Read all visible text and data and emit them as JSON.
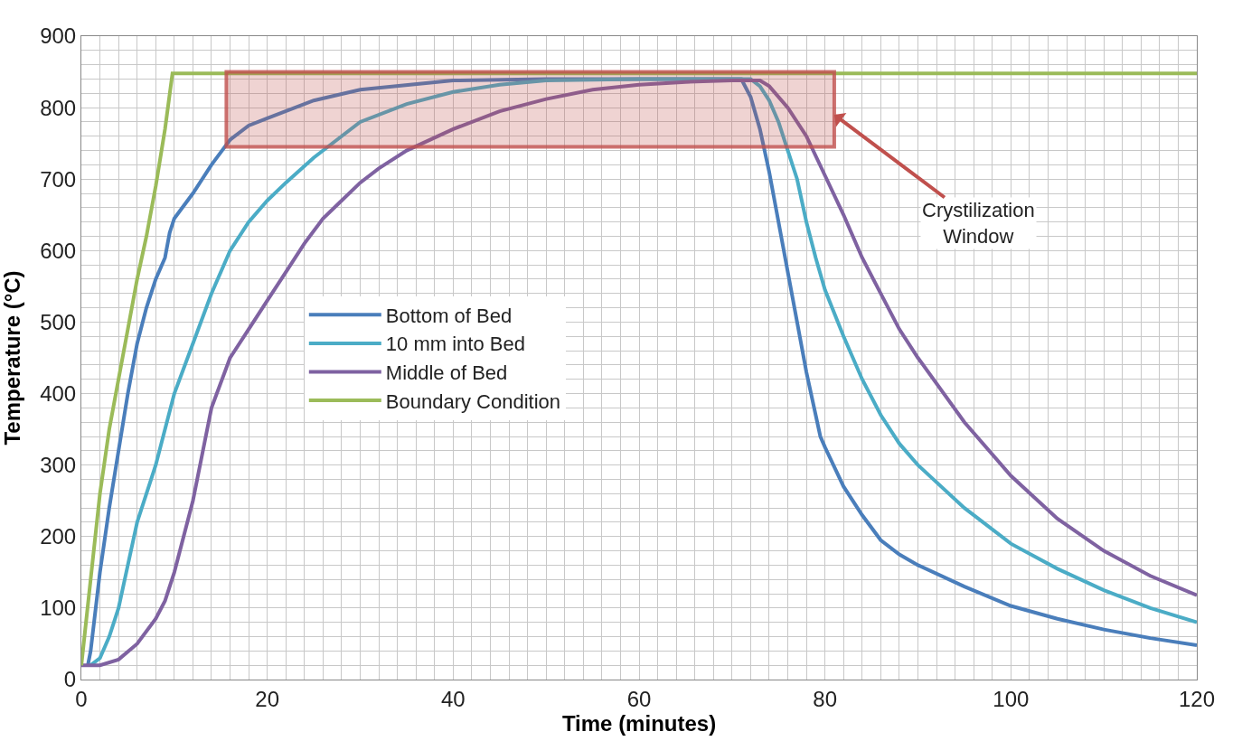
{
  "chart_data": {
    "type": "line",
    "xlabel": "Time (minutes)",
    "ylabel": "Temperature (°C)",
    "xlim": [
      0,
      120
    ],
    "ylim": [
      0,
      900
    ],
    "xticks": [
      0,
      {
        "value": 2,
        "label": null
      },
      {
        "value": 4,
        "label": null
      },
      {
        "value": 6,
        "label": null
      },
      {
        "value": 8,
        "label": null
      },
      {
        "value": 10,
        "label": null
      },
      {
        "value": 12,
        "label": null
      },
      {
        "value": 14,
        "label": null
      },
      {
        "value": 16,
        "label": null
      },
      {
        "value": 18,
        "label": null
      },
      20,
      {
        "value": 22,
        "label": null
      },
      {
        "value": 24,
        "label": null
      },
      {
        "value": 26,
        "label": null
      },
      {
        "value": 28,
        "label": null
      },
      {
        "value": 30,
        "label": null
      },
      {
        "value": 32,
        "label": null
      },
      {
        "value": 34,
        "label": null
      },
      {
        "value": 36,
        "label": null
      },
      {
        "value": 38,
        "label": null
      },
      40,
      {
        "value": 42,
        "label": null
      },
      {
        "value": 44,
        "label": null
      },
      {
        "value": 46,
        "label": null
      },
      {
        "value": 48,
        "label": null
      },
      {
        "value": 50,
        "label": null
      },
      {
        "value": 52,
        "label": null
      },
      {
        "value": 54,
        "label": null
      },
      {
        "value": 56,
        "label": null
      },
      {
        "value": 58,
        "label": null
      },
      60,
      {
        "value": 62,
        "label": null
      },
      {
        "value": 64,
        "label": null
      },
      {
        "value": 66,
        "label": null
      },
      {
        "value": 68,
        "label": null
      },
      {
        "value": 70,
        "label": null
      },
      {
        "value": 72,
        "label": null
      },
      {
        "value": 74,
        "label": null
      },
      {
        "value": 76,
        "label": null
      },
      {
        "value": 78,
        "label": null
      },
      80,
      {
        "value": 82,
        "label": null
      },
      {
        "value": 84,
        "label": null
      },
      {
        "value": 86,
        "label": null
      },
      {
        "value": 88,
        "label": null
      },
      {
        "value": 90,
        "label": null
      },
      {
        "value": 92,
        "label": null
      },
      {
        "value": 94,
        "label": null
      },
      {
        "value": 96,
        "label": null
      },
      {
        "value": 98,
        "label": null
      },
      100,
      {
        "value": 102,
        "label": null
      },
      {
        "value": 104,
        "label": null
      },
      {
        "value": 106,
        "label": null
      },
      {
        "value": 108,
        "label": null
      },
      {
        "value": 110,
        "label": null
      },
      {
        "value": 112,
        "label": null
      },
      {
        "value": 114,
        "label": null
      },
      {
        "value": 116,
        "label": null
      },
      {
        "value": 118,
        "label": null
      },
      120
    ],
    "yticks": [
      0,
      {
        "value": 20,
        "label": null
      },
      {
        "value": 40,
        "label": null
      },
      {
        "value": 60,
        "label": null
      },
      {
        "value": 80,
        "label": null
      },
      100,
      {
        "value": 120,
        "label": null
      },
      {
        "value": 140,
        "label": null
      },
      {
        "value": 160,
        "label": null
      },
      {
        "value": 180,
        "label": null
      },
      200,
      {
        "value": 220,
        "label": null
      },
      {
        "value": 240,
        "label": null
      },
      {
        "value": 260,
        "label": null
      },
      {
        "value": 280,
        "label": null
      },
      300,
      {
        "value": 320,
        "label": null
      },
      {
        "value": 340,
        "label": null
      },
      {
        "value": 360,
        "label": null
      },
      {
        "value": 380,
        "label": null
      },
      400,
      {
        "value": 420,
        "label": null
      },
      {
        "value": 440,
        "label": null
      },
      {
        "value": 460,
        "label": null
      },
      {
        "value": 480,
        "label": null
      },
      500,
      {
        "value": 520,
        "label": null
      },
      {
        "value": 540,
        "label": null
      },
      {
        "value": 560,
        "label": null
      },
      {
        "value": 580,
        "label": null
      },
      600,
      {
        "value": 620,
        "label": null
      },
      {
        "value": 640,
        "label": null
      },
      {
        "value": 660,
        "label": null
      },
      {
        "value": 680,
        "label": null
      },
      700,
      {
        "value": 720,
        "label": null
      },
      {
        "value": 740,
        "label": null
      },
      {
        "value": 760,
        "label": null
      },
      {
        "value": 780,
        "label": null
      },
      800,
      {
        "value": 820,
        "label": null
      },
      {
        "value": 840,
        "label": null
      },
      {
        "value": 860,
        "label": null
      },
      {
        "value": 880,
        "label": null
      },
      900
    ],
    "grid": true,
    "legend": "left",
    "marker": "none",
    "line_style": "solid",
    "series": [
      {
        "name": "Bottom of Bed",
        "color": "#4a7ebb",
        "x": [
          0.7,
          1,
          2,
          3,
          4,
          5,
          6,
          7,
          8,
          9,
          9.5,
          10,
          12,
          14,
          16,
          18,
          20,
          25,
          30,
          40,
          50,
          60,
          70,
          71,
          72,
          73,
          74,
          75,
          76,
          77,
          78,
          79,
          79.5,
          80,
          82,
          84,
          86,
          88,
          90,
          95,
          100,
          105,
          110,
          115,
          120
        ],
        "values": [
          20,
          40,
          150,
          240,
          320,
          400,
          470,
          520,
          560,
          590,
          625,
          645,
          680,
          720,
          755,
          775,
          785,
          810,
          825,
          838,
          840,
          840,
          840,
          840,
          815,
          770,
          710,
          640,
          570,
          500,
          430,
          370,
          340,
          325,
          270,
          230,
          195,
          175,
          160,
          130,
          103,
          85,
          70,
          58,
          48
        ]
      },
      {
        "name": "10 mm into Bed",
        "color": "#4bacc6",
        "x": [
          1,
          2,
          3,
          4,
          5,
          6,
          7,
          8,
          9,
          10,
          12,
          14,
          16,
          18,
          20,
          22,
          25,
          28,
          30,
          35,
          40,
          45,
          50,
          60,
          72,
          73,
          74,
          75,
          76,
          77,
          78,
          79,
          80,
          82,
          84,
          86,
          88,
          90,
          95,
          100,
          105,
          110,
          115,
          120
        ],
        "values": [
          20,
          30,
          60,
          100,
          160,
          220,
          260,
          300,
          350,
          400,
          470,
          540,
          600,
          640,
          670,
          695,
          730,
          760,
          780,
          805,
          822,
          832,
          838,
          840,
          840,
          830,
          810,
          780,
          740,
          700,
          640,
          590,
          545,
          480,
          420,
          370,
          330,
          300,
          240,
          190,
          155,
          125,
          100,
          80
        ]
      },
      {
        "name": "Middle of Bed",
        "color": "#7f62a1",
        "x": [
          0,
          2,
          4,
          6,
          8,
          9,
          10,
          12,
          14,
          16,
          18,
          20,
          22,
          24,
          26,
          28,
          30,
          32,
          35,
          40,
          45,
          50,
          55,
          60,
          65,
          70,
          73,
          74,
          76,
          78,
          80,
          82,
          84,
          86,
          88,
          90,
          95,
          100,
          105,
          110,
          115,
          120
        ],
        "values": [
          20,
          20,
          28,
          50,
          85,
          110,
          150,
          250,
          380,
          450,
          490,
          530,
          570,
          610,
          645,
          670,
          695,
          715,
          740,
          770,
          795,
          812,
          825,
          832,
          836,
          838,
          838,
          830,
          800,
          760,
          705,
          650,
          590,
          540,
          490,
          450,
          360,
          285,
          225,
          180,
          145,
          118
        ]
      },
      {
        "name": "Boundary Condition",
        "color": "#9bbb59",
        "x": [
          0,
          1,
          2,
          3,
          4,
          5,
          6,
          7,
          8,
          9,
          9.8,
          120
        ],
        "values": [
          20,
          140,
          260,
          350,
          420,
          490,
          560,
          620,
          690,
          770,
          848,
          848
        ]
      }
    ],
    "bands": [
      {
        "axis": "y",
        "from": 745,
        "to": 850,
        "color": "#c0504d"
      }
    ],
    "annotations": [
      {
        "text": "Crystilization Window",
        "x": 81,
        "y": 790
      }
    ]
  }
}
